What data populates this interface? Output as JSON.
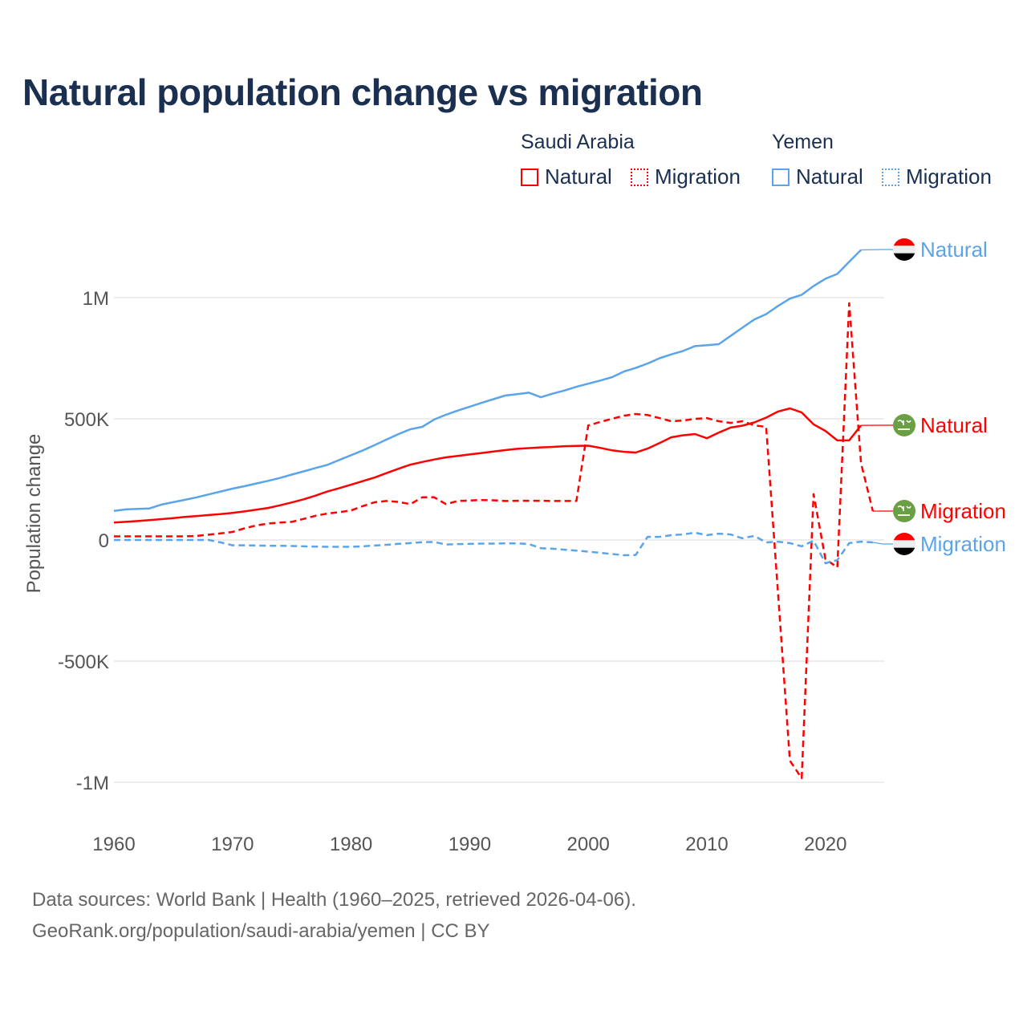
{
  "title": "Natural population change vs migration",
  "legend": {
    "groups": [
      {
        "name": "Saudi Arabia",
        "items": [
          {
            "label": "Natural",
            "style": "solid"
          },
          {
            "label": "Migration",
            "style": "dotted"
          }
        ],
        "color": "#ff0000"
      },
      {
        "name": "Yemen",
        "items": [
          {
            "label": "Natural",
            "style": "solid"
          },
          {
            "label": "Migration",
            "style": "dotted"
          }
        ],
        "color": "#5ba4ea"
      }
    ]
  },
  "footer": {
    "line1": "Data sources: World Bank | Health (1960–2025, retrieved 2026-04-06).",
    "line2": "GeoRank.org/population/saudi-arabia/yemen | CC BY"
  },
  "chart_data": {
    "type": "line",
    "title": "Natural population change vs migration",
    "xlabel": "",
    "ylabel": "Population change",
    "xlim": [
      1960,
      2025
    ],
    "ylim": [
      -1000000,
      1250000
    ],
    "x_ticks": [
      1960,
      1970,
      1980,
      1990,
      2000,
      2010,
      2020
    ],
    "y_ticks": [
      {
        "value": -1000000,
        "label": "-1M"
      },
      {
        "value": -500000,
        "label": "-500K"
      },
      {
        "value": 0,
        "label": "0"
      },
      {
        "value": 500000,
        "label": "500K"
      },
      {
        "value": 1000000,
        "label": "1M"
      }
    ],
    "grid": true,
    "legend_position": "top-right",
    "x_start": 1960,
    "unit_multiplier": 1000,
    "series": [
      {
        "name": "Yemen Natural",
        "country": "Yemen",
        "end_label": "Natural",
        "color": "#5ba4ea",
        "dash": "solid",
        "flag": "yemen",
        "values": [
          120,
          126,
          128,
          130,
          146,
          156,
          166,
          176,
          188,
          200,
          212,
          222,
          233,
          244,
          256,
          270,
          283,
          297,
          310,
          330,
          350,
          370,
          392,
          415,
          437,
          457,
          467,
          497,
          517,
          534,
          550,
          566,
          581,
          596,
          602,
          608,
          589,
          604,
          617,
          632,
          645,
          658,
          672,
          695,
          710,
          728,
          750,
          766,
          780,
          800,
          804,
          808,
          842,
          876,
          910,
          932,
          966,
          996,
          1012,
          1048,
          1078,
          1098,
          1148,
          1197,
          null,
          null
        ]
      },
      {
        "name": "Saudi Arabia Natural",
        "country": "Saudi Arabia",
        "end_label": "Natural",
        "color": "#ff0000",
        "dash": "solid",
        "flag": "saudi",
        "values": [
          72,
          75,
          78,
          82,
          86,
          90,
          95,
          99,
          103,
          107,
          112,
          118,
          125,
          132,
          143,
          155,
          168,
          183,
          200,
          214,
          228,
          243,
          258,
          276,
          294,
          311,
          322,
          332,
          341,
          347,
          353,
          359,
          365,
          371,
          376,
          379,
          382,
          384,
          387,
          388,
          389,
          380,
          370,
          364,
          361,
          377,
          400,
          424,
          432,
          437,
          420,
          443,
          464,
          472,
          485,
          505,
          530,
          543,
          526,
          477,
          450,
          411,
          411,
          473,
          null,
          null
        ]
      },
      {
        "name": "Saudi Arabia Migration",
        "country": "Saudi Arabia",
        "end_label": "Migration",
        "color": "#ff0000",
        "dash": "dashed",
        "flag": "saudi",
        "values": [
          15,
          15,
          15,
          15,
          15,
          15,
          15,
          17,
          22,
          27,
          33,
          48,
          60,
          68,
          72,
          75,
          87,
          100,
          109,
          115,
          122,
          140,
          156,
          161,
          157,
          148,
          176,
          176,
          148,
          161,
          163,
          165,
          164,
          161,
          162,
          162,
          162,
          161,
          161,
          161,
          473,
          487,
          500,
          513,
          520,
          516,
          503,
          490,
          493,
          500,
          503,
          490,
          483,
          490,
          473,
          467,
          -220,
          -911,
          -983,
          189,
          -79,
          -113,
          977,
          318,
          119,
          null
        ]
      },
      {
        "name": "Yemen Migration",
        "country": "Yemen",
        "end_label": "Migration",
        "color": "#5ba4ea",
        "dash": "dashed",
        "flag": "yemen",
        "values": [
          0,
          0,
          0,
          0,
          0,
          0,
          0,
          0,
          0,
          -10,
          -22,
          -22,
          -23,
          -24,
          -24,
          -25,
          -26,
          -27,
          -28,
          -28,
          -28,
          -26,
          -23,
          -20,
          -16,
          -13,
          -9,
          -8,
          -19,
          -17,
          -16,
          -15,
          -15,
          -14,
          -14,
          -17,
          -34,
          -36,
          -40,
          -44,
          -48,
          -53,
          -58,
          -63,
          -62,
          13,
          13,
          20,
          23,
          30,
          20,
          26,
          23,
          7,
          17,
          -10,
          -7,
          -13,
          -26,
          -3,
          -96,
          -83,
          -13,
          -7,
          -10,
          null
        ]
      }
    ]
  }
}
